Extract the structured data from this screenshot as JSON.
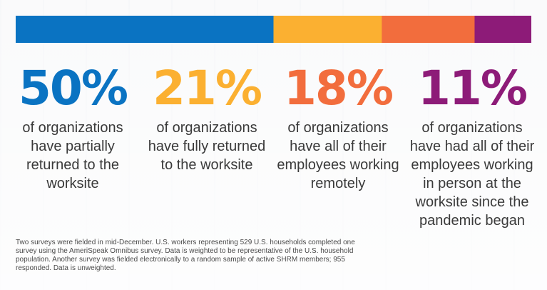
{
  "chart_data": {
    "type": "bar",
    "orientation": "horizontal-stacked",
    "categories": [
      "have partially returned to the worksite",
      "have fully returned to the worksite",
      "have all of their employees working remotely",
      "have had all of their employees working in person at the worksite since the pandemic began"
    ],
    "values": [
      50,
      21,
      18,
      11
    ],
    "value_labels": [
      "50%",
      "21%",
      "18%",
      "11%"
    ],
    "colors": [
      "#0a73c2",
      "#fbb031",
      "#f26d3d",
      "#8d1b78"
    ],
    "title": "",
    "xlabel": "",
    "ylabel": "",
    "xlim": [
      0,
      100
    ]
  },
  "stats": [
    {
      "pct": "50%",
      "desc": "of organizations have partially returned to the worksite",
      "color": "#0a73c2"
    },
    {
      "pct": "21%",
      "desc": "of organizations have fully returned to the worksite",
      "color": "#fbb031"
    },
    {
      "pct": "18%",
      "desc": "of organizations have all of their employees working remotely",
      "color": "#f26d3d"
    },
    {
      "pct": "11%",
      "desc": "of organizations have had all of their employees working in person at the worksite since the pandemic began",
      "color": "#8d1b78"
    }
  ],
  "footnote": "Two surveys were fielded in mid-December. U.S. workers representing 529 U.S. households completed one survey using the AmeriSpeak Omnibus survey. Data is weighted to be representative of the U.S. household population. Another survey was fielded electronically to a random sample of active SHRM members; 955 responded. Data is unweighted."
}
